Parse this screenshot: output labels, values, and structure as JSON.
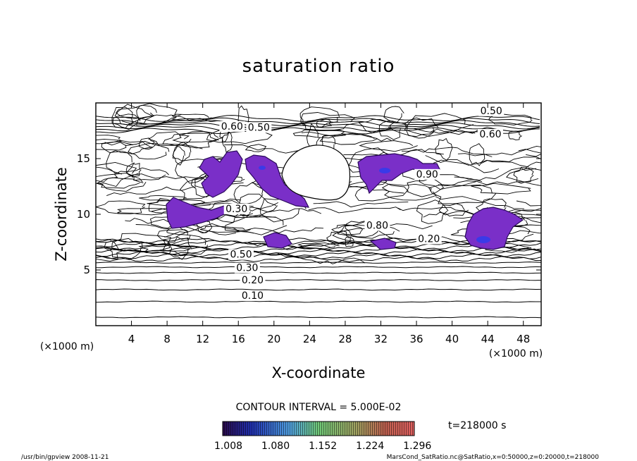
{
  "chart_data": {
    "type": "contour",
    "title": "saturation ratio",
    "xlabel": "X-coordinate",
    "ylabel": "Z-coordinate",
    "x_unit": "(×1000 m)",
    "y_unit": "(×1000 m)",
    "xlim": [
      0,
      50
    ],
    "ylim": [
      0,
      20
    ],
    "x_ticks": [
      4,
      8,
      12,
      16,
      20,
      24,
      28,
      32,
      36,
      40,
      44,
      48
    ],
    "y_ticks": [
      5,
      10,
      15
    ],
    "contour_interval": "CONTOUR INTERVAL = 5.000E-02",
    "contour_labels": [
      {
        "text": "0.10",
        "x": 17.6,
        "z": 2.4
      },
      {
        "text": "0.20",
        "x": 17.6,
        "z": 3.8
      },
      {
        "text": "0.30",
        "x": 17.0,
        "z": 4.9
      },
      {
        "text": "0.50",
        "x": 16.3,
        "z": 6.1
      },
      {
        "text": "0.50",
        "x": 18.3,
        "z": 17.5
      },
      {
        "text": "0.60",
        "x": 15.3,
        "z": 17.6
      },
      {
        "text": "0.50",
        "x": 44.4,
        "z": 19.0
      },
      {
        "text": "0.60",
        "x": 44.3,
        "z": 16.9
      },
      {
        "text": "0.90",
        "x": 37.2,
        "z": 13.3
      },
      {
        "text": "0.30",
        "x": 15.8,
        "z": 10.2
      },
      {
        "text": "0.20",
        "x": 37.4,
        "z": 7.5
      },
      {
        "text": "0.80",
        "x": 31.6,
        "z": 8.7
      }
    ],
    "color_scale": {
      "ticks": [
        "1.008",
        "1.080",
        "1.152",
        "1.224",
        "1.296"
      ],
      "range": [
        1.008,
        1.3
      ]
    },
    "time_label": "t=218000 s",
    "footer_left": "/usr/bin/gpview   2008-11-21",
    "footer_right": "MarsCond_SatRatio.nc@SatRatio,x=0:50000,z=0:20000,t=218000"
  }
}
